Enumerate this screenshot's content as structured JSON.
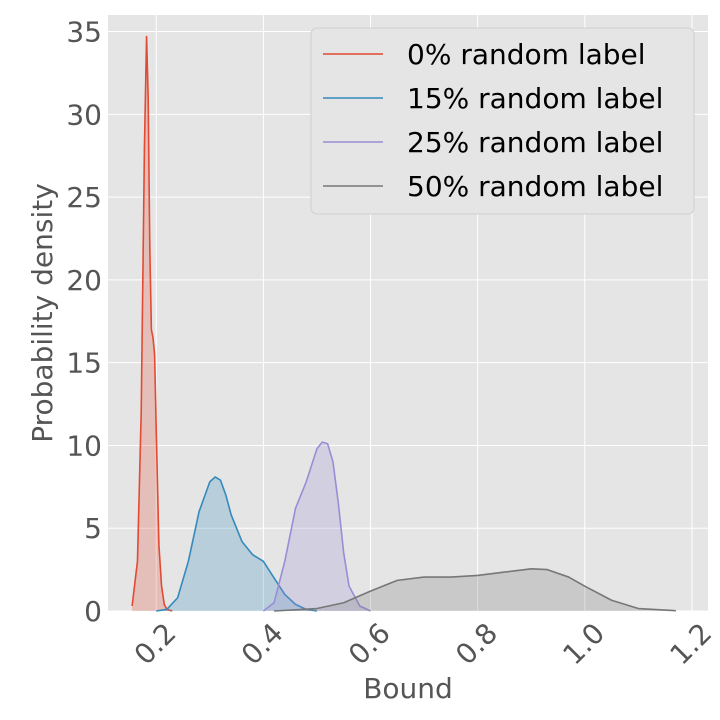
{
  "chart_data": {
    "type": "area",
    "xlabel": "Bound",
    "ylabel": "Probability density",
    "xlim": [
      0.11,
      1.23
    ],
    "ylim": [
      0,
      36
    ],
    "xticks": [
      0.2,
      0.4,
      0.6,
      0.8,
      1.0,
      1.2
    ],
    "xtick_labels": [
      "0.2",
      "0.4",
      "0.6",
      "0.8",
      "1.0",
      "1.2"
    ],
    "yticks": [
      0,
      5,
      10,
      15,
      20,
      25,
      30,
      35
    ],
    "ytick_labels": [
      "0",
      "5",
      "10",
      "15",
      "20",
      "25",
      "30",
      "35"
    ],
    "grid": true,
    "legend_position": "top-right",
    "series": [
      {
        "name": "0% random label",
        "color": "#e24a33",
        "x": [
          0.155,
          0.165,
          0.172,
          0.178,
          0.182,
          0.185,
          0.188,
          0.191,
          0.194,
          0.197,
          0.2,
          0.205,
          0.21,
          0.215,
          0.22,
          0.23
        ],
        "y": [
          0.3,
          3,
          12,
          28,
          34.7,
          31,
          22,
          17,
          16.5,
          15.5,
          11,
          4,
          1.5,
          0.4,
          0.1,
          0
        ]
      },
      {
        "name": "15% random label",
        "color": "#348abd",
        "x": [
          0.2,
          0.22,
          0.24,
          0.26,
          0.28,
          0.3,
          0.31,
          0.32,
          0.33,
          0.34,
          0.36,
          0.38,
          0.4,
          0.42,
          0.44,
          0.46,
          0.48,
          0.5
        ],
        "y": [
          0,
          0.1,
          0.8,
          3,
          6,
          7.8,
          8.1,
          7.9,
          7,
          5.8,
          4.2,
          3.4,
          3,
          2,
          1,
          0.4,
          0.1,
          0
        ]
      },
      {
        "name": "25% random label",
        "color": "#988ed5",
        "x": [
          0.4,
          0.42,
          0.44,
          0.46,
          0.48,
          0.5,
          0.51,
          0.52,
          0.53,
          0.54,
          0.55,
          0.56,
          0.58,
          0.6
        ],
        "y": [
          0,
          0.5,
          3,
          6.2,
          7.8,
          9.8,
          10.2,
          10.1,
          9,
          6.5,
          3.5,
          1.5,
          0.3,
          0
        ]
      },
      {
        "name": "50% random label",
        "color": "#777777",
        "x": [
          0.42,
          0.5,
          0.55,
          0.6,
          0.65,
          0.7,
          0.75,
          0.8,
          0.85,
          0.9,
          0.93,
          0.97,
          1.0,
          1.05,
          1.1,
          1.17
        ],
        "y": [
          0,
          0.15,
          0.5,
          1.2,
          1.85,
          2.05,
          2.05,
          2.15,
          2.35,
          2.55,
          2.5,
          2.05,
          1.5,
          0.65,
          0.15,
          0.02
        ]
      }
    ]
  }
}
